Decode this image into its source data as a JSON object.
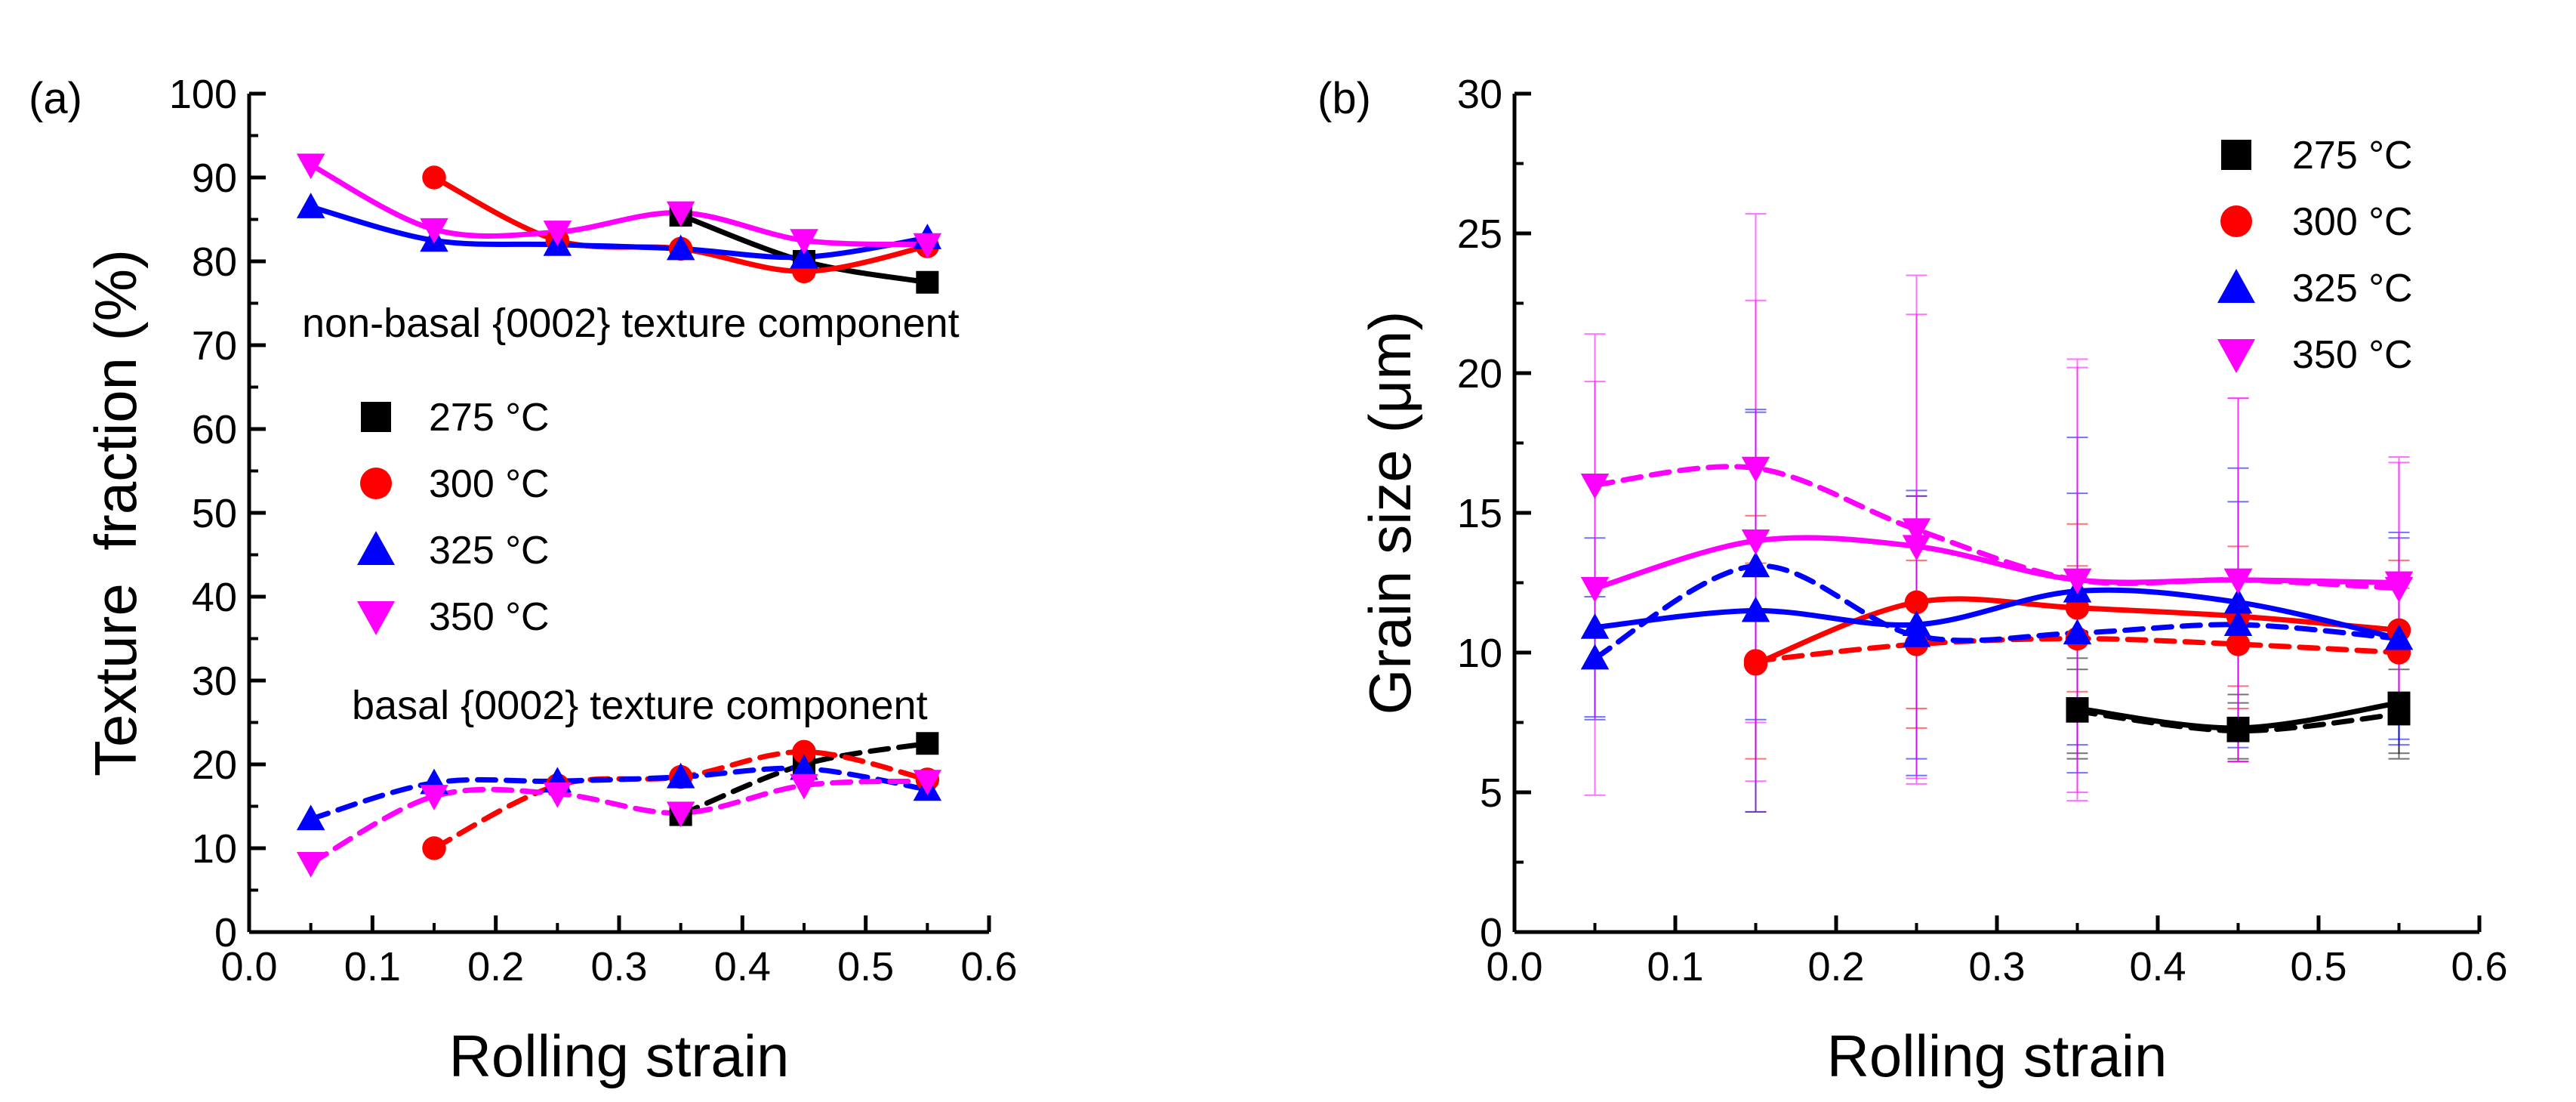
{
  "chart_data": [
    {
      "panel_label": "(a)",
      "type": "line",
      "xlabel": "Rolling strain",
      "ylabel": "Texture  fraction (%)",
      "xlim": [
        0.0,
        0.6
      ],
      "ylim": [
        0,
        100
      ],
      "xticks": [
        "0.0",
        "0.1",
        "0.2",
        "0.3",
        "0.4",
        "0.5",
        "0.6"
      ],
      "yticks": [
        "0",
        "10",
        "20",
        "30",
        "40",
        "50",
        "60",
        "70",
        "80",
        "90",
        "100"
      ],
      "annotations": [
        "non-basal {0002} texture component",
        "basal {0002} texture component"
      ],
      "legend": {
        "position": "center-left",
        "entries": [
          "275 °C",
          "300 °C",
          "325 °C",
          "350 °C"
        ]
      },
      "series": [
        {
          "name": "275 °C",
          "group": "non-basal",
          "color": "#000000",
          "marker": "square",
          "line": "solid",
          "x": [
            0.35,
            0.45,
            0.55
          ],
          "y": [
            85.5,
            80.0,
            77.5
          ]
        },
        {
          "name": "300 °C",
          "group": "non-basal",
          "color": "#ff0000",
          "marker": "circle",
          "line": "solid",
          "x": [
            0.15,
            0.25,
            0.35,
            0.45,
            0.55
          ],
          "y": [
            90.0,
            82.5,
            81.5,
            78.8,
            81.8
          ]
        },
        {
          "name": "325 °C",
          "group": "non-basal",
          "color": "#0000ff",
          "marker": "triangle-up",
          "line": "solid",
          "x": [
            0.05,
            0.15,
            0.25,
            0.35,
            0.45,
            0.55
          ],
          "y": [
            86.5,
            82.5,
            82.0,
            81.5,
            80.5,
            82.8
          ]
        },
        {
          "name": "350 °C",
          "group": "non-basal",
          "color": "#ff00ff",
          "marker": "triangle-down",
          "line": "solid",
          "x": [
            0.05,
            0.15,
            0.25,
            0.35,
            0.45,
            0.55
          ],
          "y": [
            91.5,
            83.8,
            83.5,
            85.8,
            82.5,
            82.0
          ]
        },
        {
          "name": "275 °C",
          "group": "basal",
          "color": "#000000",
          "marker": "square",
          "line": "dashed",
          "x": [
            0.35,
            0.45,
            0.55
          ],
          "y": [
            14.0,
            20.0,
            22.5
          ]
        },
        {
          "name": "300 °C",
          "group": "basal",
          "color": "#ff0000",
          "marker": "circle",
          "line": "dashed",
          "x": [
            0.15,
            0.25,
            0.35,
            0.45,
            0.55
          ],
          "y": [
            10.0,
            17.5,
            18.5,
            21.5,
            18.2
          ]
        },
        {
          "name": "325 °C",
          "group": "basal",
          "color": "#0000ff",
          "marker": "triangle-up",
          "line": "dashed",
          "x": [
            0.05,
            0.15,
            0.25,
            0.35,
            0.45,
            0.55
          ],
          "y": [
            13.5,
            17.8,
            18.0,
            18.5,
            19.5,
            17.0
          ]
        },
        {
          "name": "350 °C",
          "group": "basal",
          "color": "#ff00ff",
          "marker": "triangle-down",
          "line": "dashed",
          "x": [
            0.05,
            0.15,
            0.25,
            0.35,
            0.45,
            0.55
          ],
          "y": [
            8.2,
            16.2,
            16.5,
            14.2,
            17.5,
            18.0
          ]
        }
      ]
    },
    {
      "panel_label": "(b)",
      "type": "line",
      "xlabel": "Rolling strain",
      "ylabel": "Grain size (μm)",
      "xlim": [
        0.0,
        0.6
      ],
      "ylim": [
        0,
        30
      ],
      "xticks": [
        "0.0",
        "0.1",
        "0.2",
        "0.3",
        "0.4",
        "0.5",
        "0.6"
      ],
      "yticks": [
        "0",
        "5",
        "10",
        "15",
        "20",
        "25",
        "30"
      ],
      "legend": {
        "position": "top-right",
        "entries": [
          "275 °C",
          "300 °C",
          "325 °C",
          "350 °C"
        ]
      },
      "series": [
        {
          "name": "275 °C",
          "color": "#000000",
          "marker": "square",
          "line": "solid",
          "x": [
            0.35,
            0.45,
            0.55
          ],
          "y": [
            8.0,
            7.3,
            8.2
          ],
          "err": [
            1.8,
            1.2,
            1.8
          ]
        },
        {
          "name": "275 °C",
          "color": "#000000",
          "marker": "square",
          "line": "dashed",
          "x": [
            0.35,
            0.45,
            0.55
          ],
          "y": [
            7.9,
            7.2,
            7.8
          ],
          "err": [
            1.5,
            1.0,
            1.6
          ]
        },
        {
          "name": "300 °C",
          "color": "#ff0000",
          "marker": "circle",
          "line": "solid",
          "x": [
            0.15,
            0.25,
            0.35,
            0.45,
            0.55
          ],
          "y": [
            9.6,
            11.8,
            11.6,
            11.3,
            10.8
          ],
          "err": [
            5.3,
            3.8,
            3.0,
            2.5,
            2.5
          ]
        },
        {
          "name": "300 °C",
          "color": "#ff0000",
          "marker": "circle",
          "line": "dashed",
          "x": [
            0.15,
            0.25,
            0.35,
            0.45,
            0.55
          ],
          "y": [
            9.7,
            10.3,
            10.5,
            10.3,
            10.0
          ],
          "err": [
            3.5,
            3.0,
            2.6,
            2.3,
            2.3
          ]
        },
        {
          "name": "325 °C",
          "color": "#0000ff",
          "marker": "triangle-up",
          "line": "solid",
          "x": [
            0.05,
            0.15,
            0.25,
            0.35,
            0.45,
            0.55
          ],
          "y": [
            10.9,
            11.5,
            11.0,
            12.2,
            11.8,
            10.5
          ],
          "err": [
            3.2,
            7.2,
            4.8,
            5.5,
            4.8,
            3.8
          ]
        },
        {
          "name": "325 °C",
          "color": "#0000ff",
          "marker": "triangle-up",
          "line": "dashed",
          "x": [
            0.05,
            0.15,
            0.25,
            0.35,
            0.45,
            0.55
          ],
          "y": [
            9.8,
            13.1,
            10.6,
            10.7,
            11.0,
            10.5
          ],
          "err": [
            2.2,
            5.5,
            5.0,
            5.0,
            4.4,
            3.6
          ]
        },
        {
          "name": "350 °C",
          "color": "#ff00ff",
          "marker": "triangle-down",
          "line": "solid",
          "x": [
            0.05,
            0.15,
            0.25,
            0.35,
            0.45,
            0.55
          ],
          "y": [
            12.3,
            14.0,
            13.8,
            12.6,
            12.6,
            12.5
          ],
          "err": [
            7.4,
            8.6,
            8.3,
            7.9,
            6.5,
            4.5
          ]
        },
        {
          "name": "350 °C",
          "color": "#ff00ff",
          "marker": "triangle-down",
          "line": "dashed",
          "x": [
            0.05,
            0.15,
            0.25,
            0.35,
            0.45,
            0.55
          ],
          "y": [
            16.0,
            16.6,
            14.4,
            12.6,
            12.6,
            12.3
          ],
          "err": [
            5.4,
            9.1,
            9.1,
            7.6,
            6.5,
            4.5
          ]
        }
      ]
    }
  ]
}
